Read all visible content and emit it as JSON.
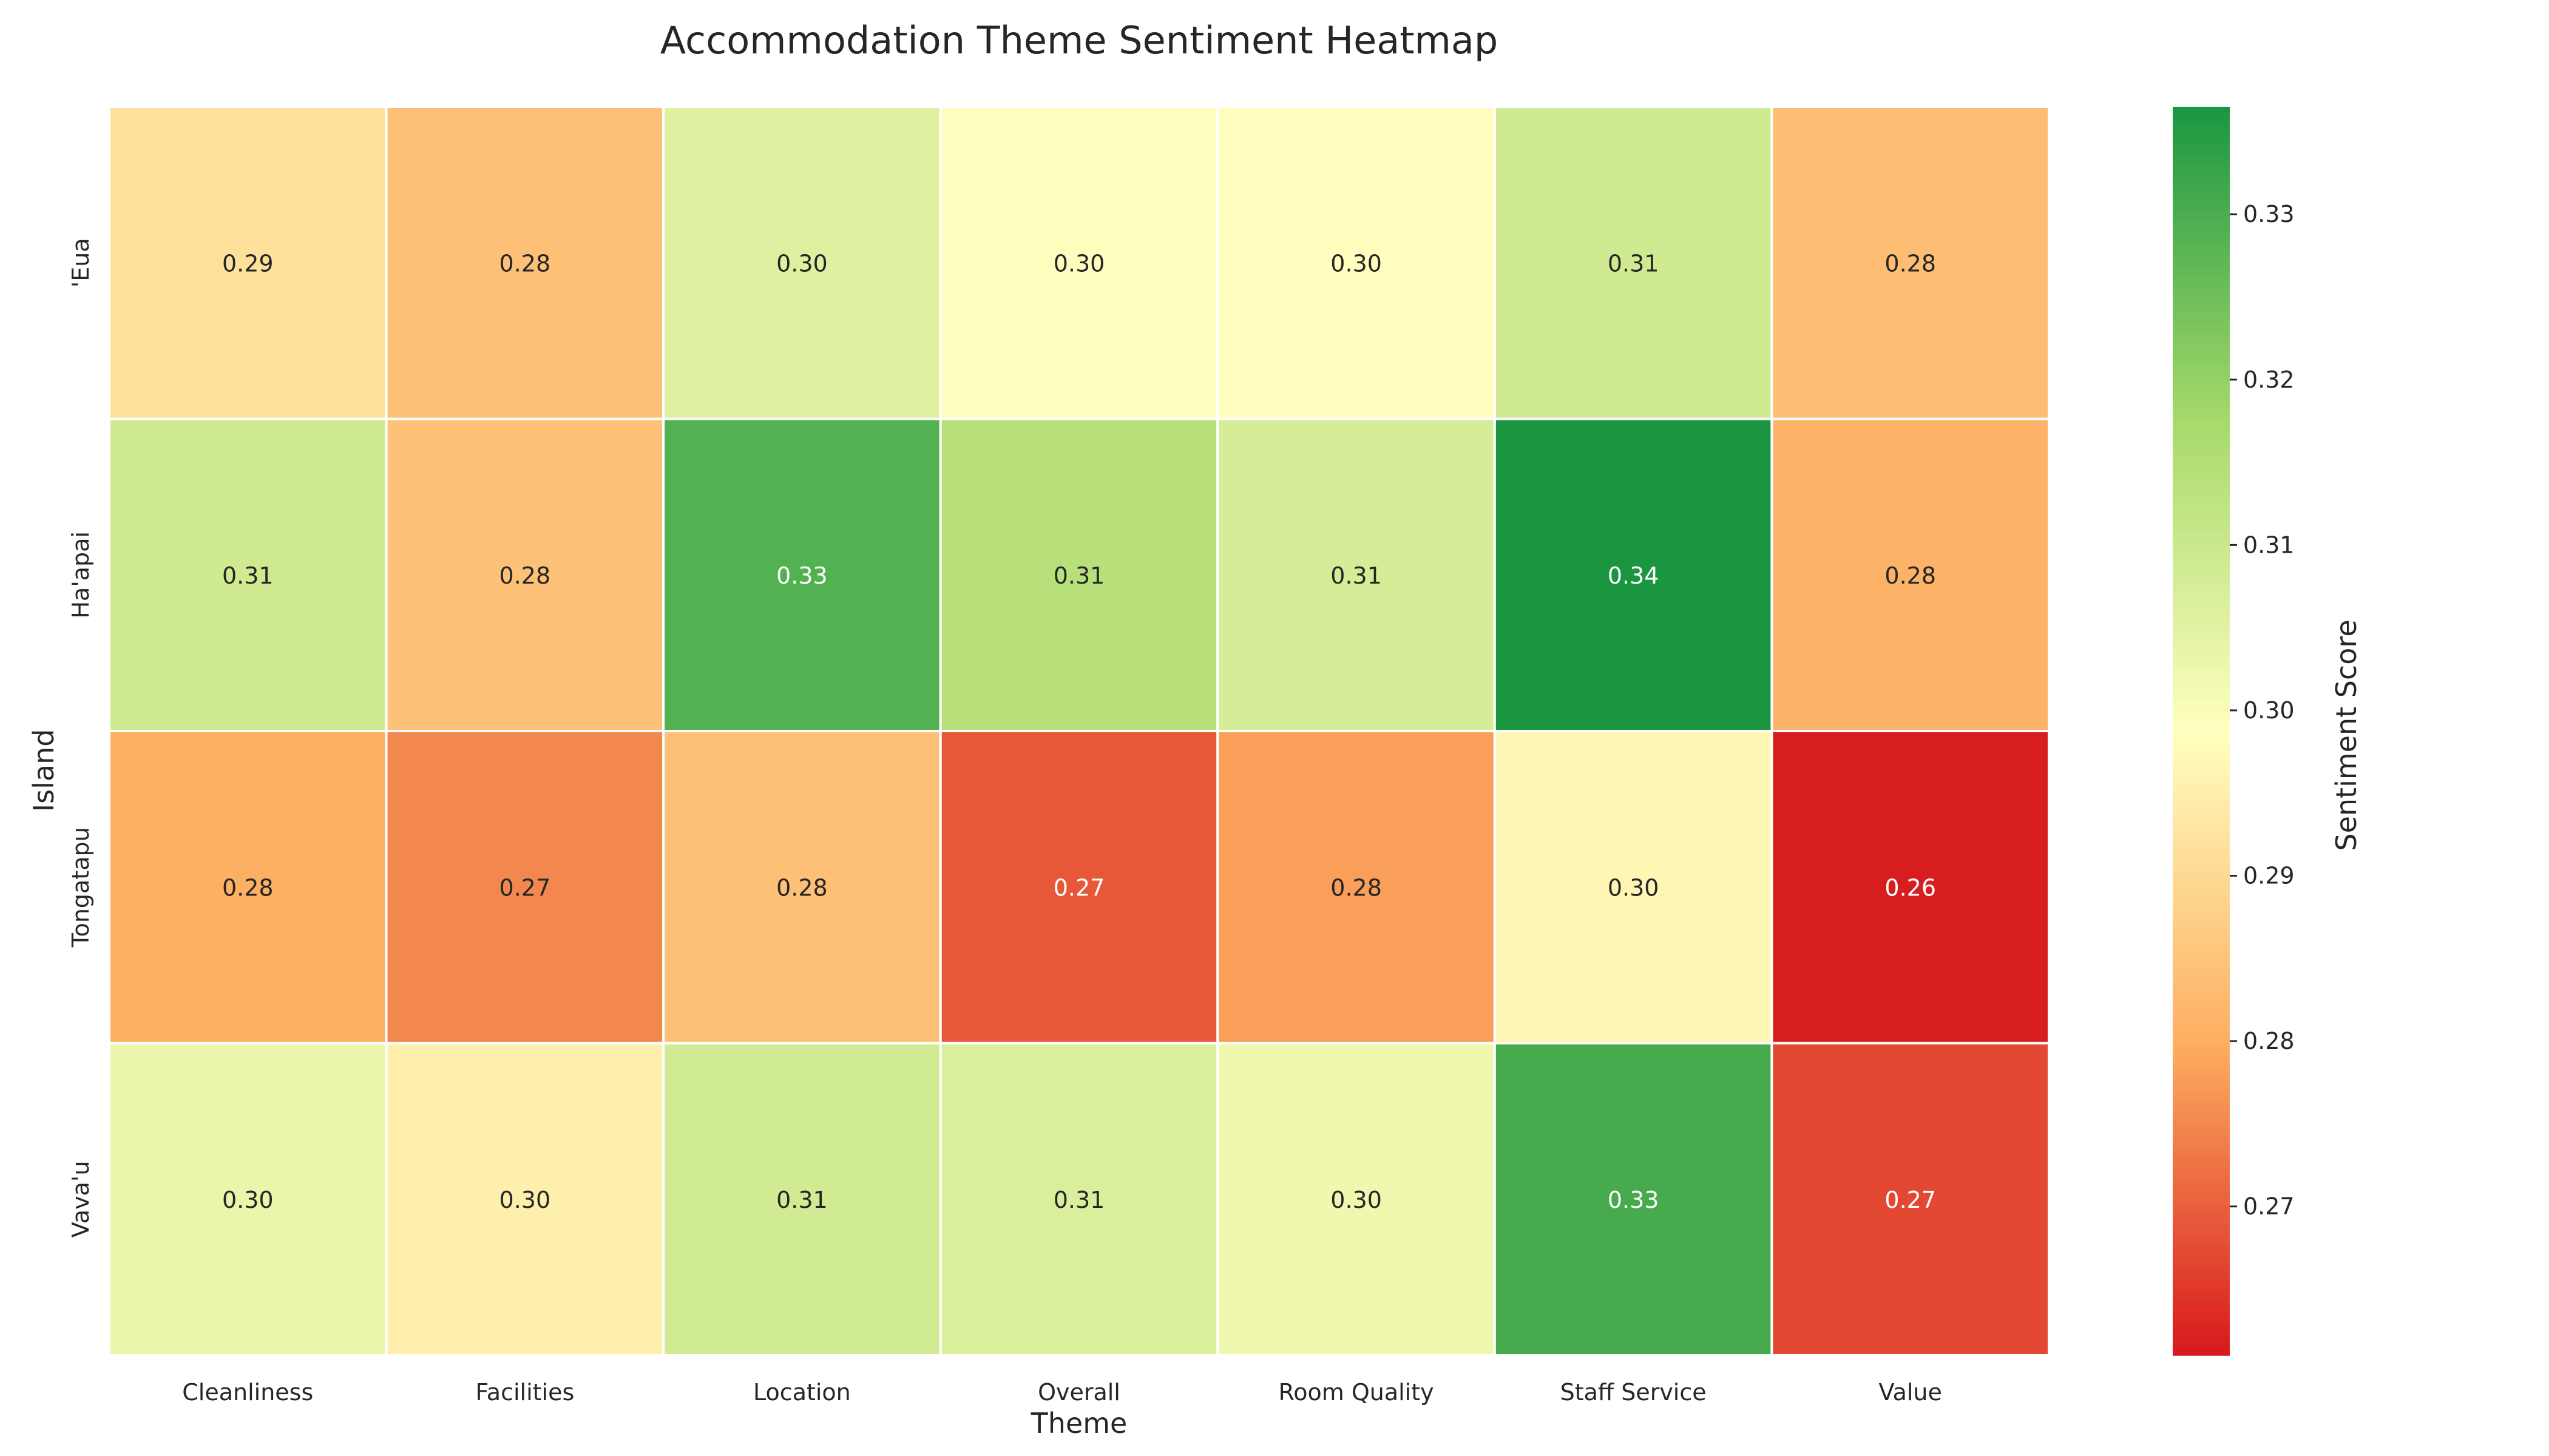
{
  "chart_data": {
    "type": "heatmap",
    "title": "Accommodation Theme Sentiment Heatmap",
    "xlabel": "Theme",
    "ylabel": "Island",
    "x_categories": [
      "Cleanliness",
      "Facilities",
      "Location",
      "Overall",
      "Room Quality",
      "Staff Service",
      "Value"
    ],
    "y_categories": [
      "'Eua",
      "Ha'apai",
      "Tongatapu",
      "Vava'u"
    ],
    "values": [
      [
        0.29,
        0.28,
        0.3,
        0.3,
        0.3,
        0.31,
        0.28
      ],
      [
        0.31,
        0.28,
        0.33,
        0.31,
        0.31,
        0.34,
        0.28
      ],
      [
        0.28,
        0.27,
        0.28,
        0.27,
        0.28,
        0.3,
        0.26
      ],
      [
        0.3,
        0.3,
        0.31,
        0.31,
        0.3,
        0.33,
        0.27
      ]
    ],
    "color_values": [
      [
        0.2915,
        0.284,
        0.3055,
        0.2992,
        0.2985,
        0.309,
        0.2835
      ],
      [
        0.309,
        0.2845,
        0.329,
        0.314,
        0.3075,
        0.3365,
        0.281
      ],
      [
        0.28,
        0.275,
        0.284,
        0.269,
        0.278,
        0.2965,
        0.2615
      ],
      [
        0.303,
        0.295,
        0.3085,
        0.3065,
        0.302,
        0.3305,
        0.267
      ]
    ],
    "colorbar": {
      "label": "Sentiment Score",
      "min": 0.261,
      "max": 0.3365,
      "ticks": [
        "0.27",
        "0.28",
        "0.29",
        "0.30",
        "0.31",
        "0.32",
        "0.33"
      ],
      "colormap": "RdYlGn"
    }
  }
}
